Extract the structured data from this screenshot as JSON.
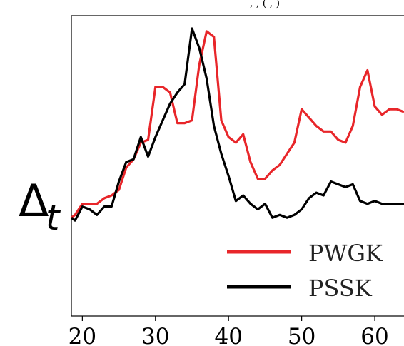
{
  "chart_data": {
    "type": "line",
    "title": "",
    "top_fragment": ", , ( , )",
    "ylabel": {
      "base": "Δ",
      "sub": "t"
    },
    "xlabel": "",
    "xlim": [
      18.5,
      64
    ],
    "ylim": [
      0,
      1
    ],
    "xticks": [
      20,
      30,
      40,
      50,
      60
    ],
    "xtick_labels": [
      "20",
      "30",
      "40",
      "50",
      "60"
    ],
    "grid": false,
    "legend_position": "lower-right",
    "colors": {
      "PWGK": "#e8262a",
      "PSSK": "#000000"
    },
    "series": [
      {
        "name": "PWGK",
        "color": "#e8262a",
        "x": [
          18.5,
          19,
          20,
          21,
          22,
          23,
          24,
          25,
          26,
          27,
          28,
          29,
          30,
          31,
          32,
          33,
          34,
          35,
          36,
          37,
          38,
          39,
          40,
          41,
          42,
          43,
          44,
          45,
          46,
          47,
          48,
          49,
          50,
          51,
          52,
          53,
          54,
          55,
          56,
          57,
          58,
          59,
          60,
          61,
          62,
          63,
          64
        ],
        "y": [
          0.32,
          0.33,
          0.37,
          0.37,
          0.37,
          0.39,
          0.4,
          0.42,
          0.5,
          0.53,
          0.59,
          0.6,
          0.79,
          0.79,
          0.77,
          0.66,
          0.66,
          0.67,
          0.87,
          0.99,
          0.97,
          0.67,
          0.61,
          0.59,
          0.62,
          0.52,
          0.46,
          0.46,
          0.49,
          0.51,
          0.55,
          0.59,
          0.71,
          0.68,
          0.65,
          0.63,
          0.63,
          0.6,
          0.59,
          0.65,
          0.79,
          0.85,
          0.72,
          0.69,
          0.71,
          0.71,
          0.7
        ]
      },
      {
        "name": "PSSK",
        "color": "#000000",
        "x": [
          18.5,
          19,
          20,
          21,
          22,
          23,
          24,
          25,
          26,
          27,
          28,
          29,
          30,
          31,
          32,
          33,
          34,
          35,
          36,
          37,
          38,
          39,
          40,
          41,
          42,
          43,
          44,
          45,
          46,
          47,
          48,
          49,
          50,
          51,
          52,
          53,
          54,
          55,
          56,
          57,
          58,
          59,
          60,
          61,
          62,
          63,
          64
        ],
        "y": [
          0.32,
          0.31,
          0.36,
          0.35,
          0.33,
          0.36,
          0.36,
          0.45,
          0.52,
          0.53,
          0.61,
          0.54,
          0.61,
          0.67,
          0.73,
          0.77,
          0.8,
          1.0,
          0.93,
          0.82,
          0.65,
          0.55,
          0.47,
          0.38,
          0.4,
          0.37,
          0.35,
          0.37,
          0.32,
          0.33,
          0.32,
          0.33,
          0.35,
          0.39,
          0.41,
          0.4,
          0.45,
          0.44,
          0.43,
          0.44,
          0.38,
          0.37,
          0.38,
          0.37,
          0.37,
          0.37,
          0.37
        ]
      }
    ]
  }
}
